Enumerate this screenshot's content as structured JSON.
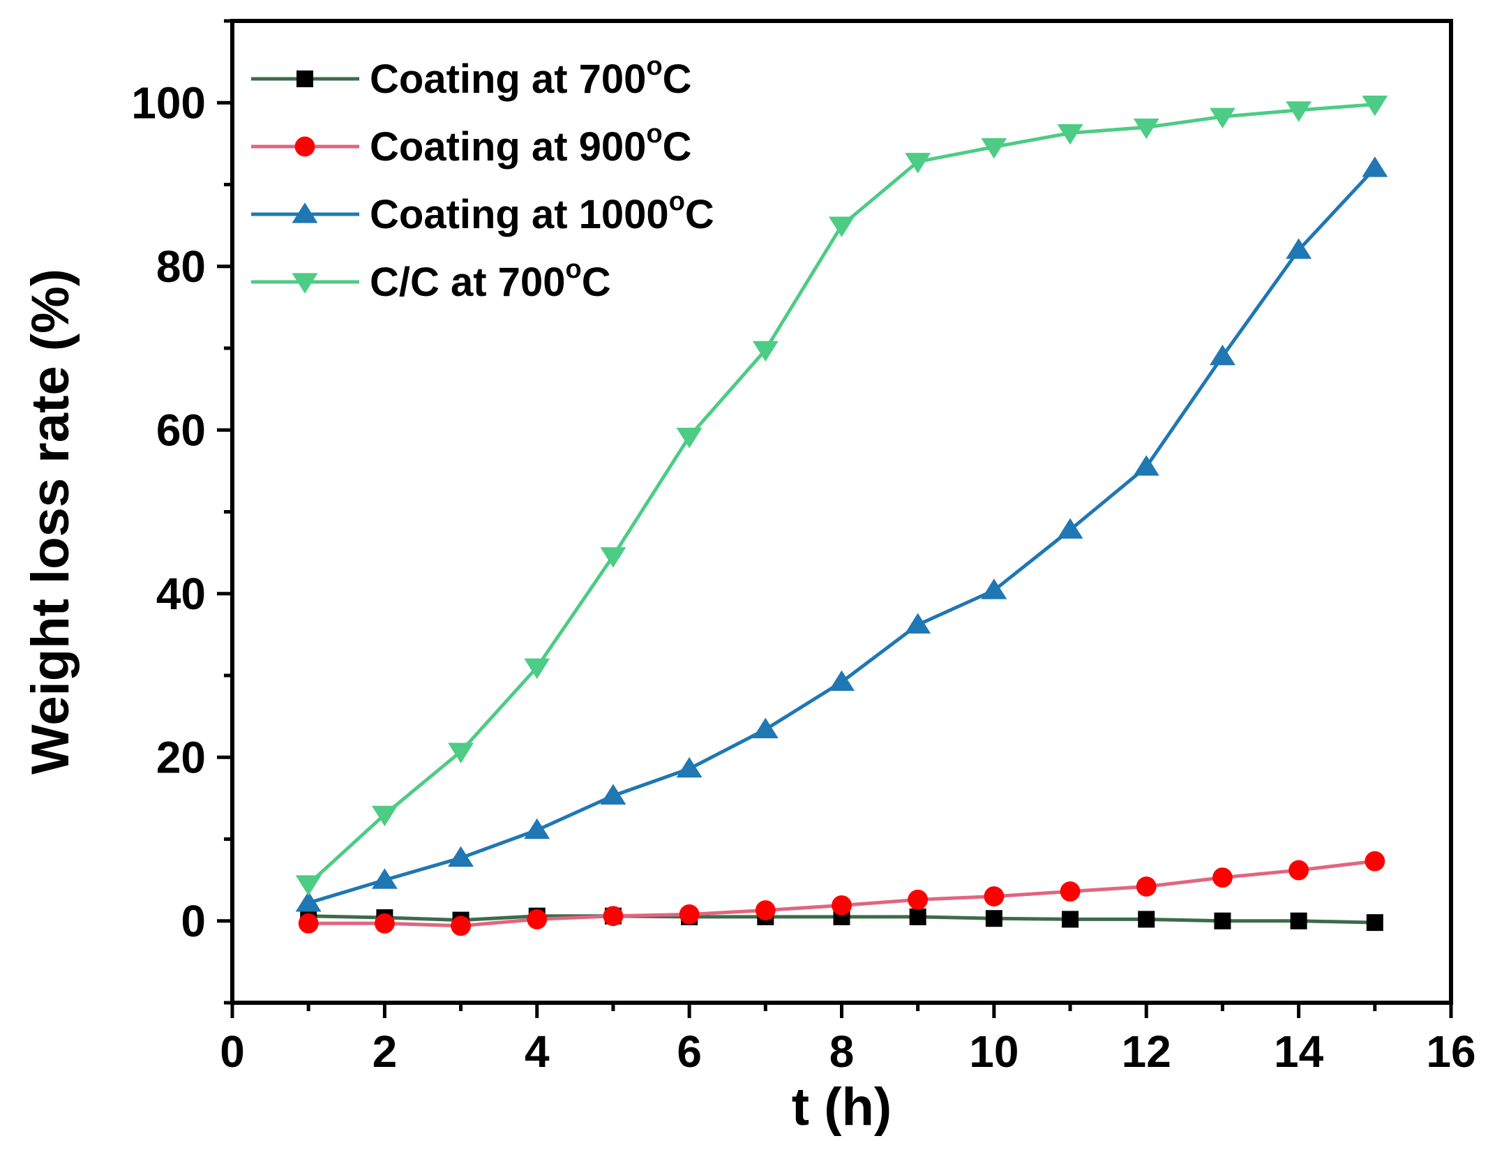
{
  "chart_data": {
    "type": "line",
    "xlabel": "t (h)",
    "ylabel": "Weight loss rate (%)",
    "xlim": [
      0,
      16
    ],
    "ylim": [
      -10,
      110
    ],
    "xticks": [
      "0",
      "2",
      "4",
      "6",
      "8",
      "10",
      "12",
      "14",
      "16"
    ],
    "yticks": [
      "0",
      "20",
      "40",
      "60",
      "80",
      "100"
    ],
    "x_tick_values": [
      0,
      2,
      4,
      6,
      8,
      10,
      12,
      14,
      16
    ],
    "y_tick_values": [
      0,
      20,
      40,
      60,
      80,
      100
    ],
    "x_minor_step": 1,
    "y_minor_step": 10,
    "grid": false,
    "legend_position": "top-left",
    "x": [
      1,
      2,
      3,
      4,
      5,
      6,
      7,
      8,
      9,
      10,
      11,
      12,
      13,
      14,
      15
    ],
    "series": [
      {
        "name": "Coating at 700",
        "name_suffix": "C",
        "name_sup": "o",
        "marker": "square",
        "line_color": "#3d6b4a",
        "marker_color": "#000000",
        "values": [
          0.6,
          0.4,
          0.1,
          0.6,
          0.6,
          0.5,
          0.5,
          0.5,
          0.5,
          0.3,
          0.2,
          0.2,
          0.0,
          0.0,
          -0.2
        ]
      },
      {
        "name": "Coating at 900",
        "name_suffix": "C",
        "name_sup": "o",
        "marker": "circle",
        "line_color": "#e06680",
        "marker_color": "#ff0000",
        "values": [
          -0.3,
          -0.3,
          -0.6,
          0.2,
          0.6,
          0.8,
          1.3,
          1.9,
          2.6,
          3.0,
          3.6,
          4.2,
          5.3,
          6.2,
          7.3
        ]
      },
      {
        "name": "Coating at 1000",
        "name_suffix": "C",
        "name_sup": "o",
        "marker": "triangle-up",
        "line_color": "#1f77b4",
        "marker_color": "#1f77b4",
        "values": [
          2.2,
          5.0,
          7.7,
          11.1,
          15.3,
          18.6,
          23.4,
          29.2,
          36.2,
          40.4,
          47.8,
          55.5,
          69.0,
          82.0,
          92.0
        ]
      },
      {
        "name": "C/C at 700",
        "name_suffix": "C",
        "name_sup": "o",
        "marker": "triangle-down",
        "line_color": "#4ccc84",
        "marker_color": "#4ccc84",
        "values": [
          4.5,
          13.0,
          20.7,
          31.0,
          44.6,
          59.2,
          69.8,
          85.0,
          92.8,
          94.6,
          96.3,
          97.0,
          98.3,
          99.1,
          99.8
        ]
      }
    ]
  }
}
